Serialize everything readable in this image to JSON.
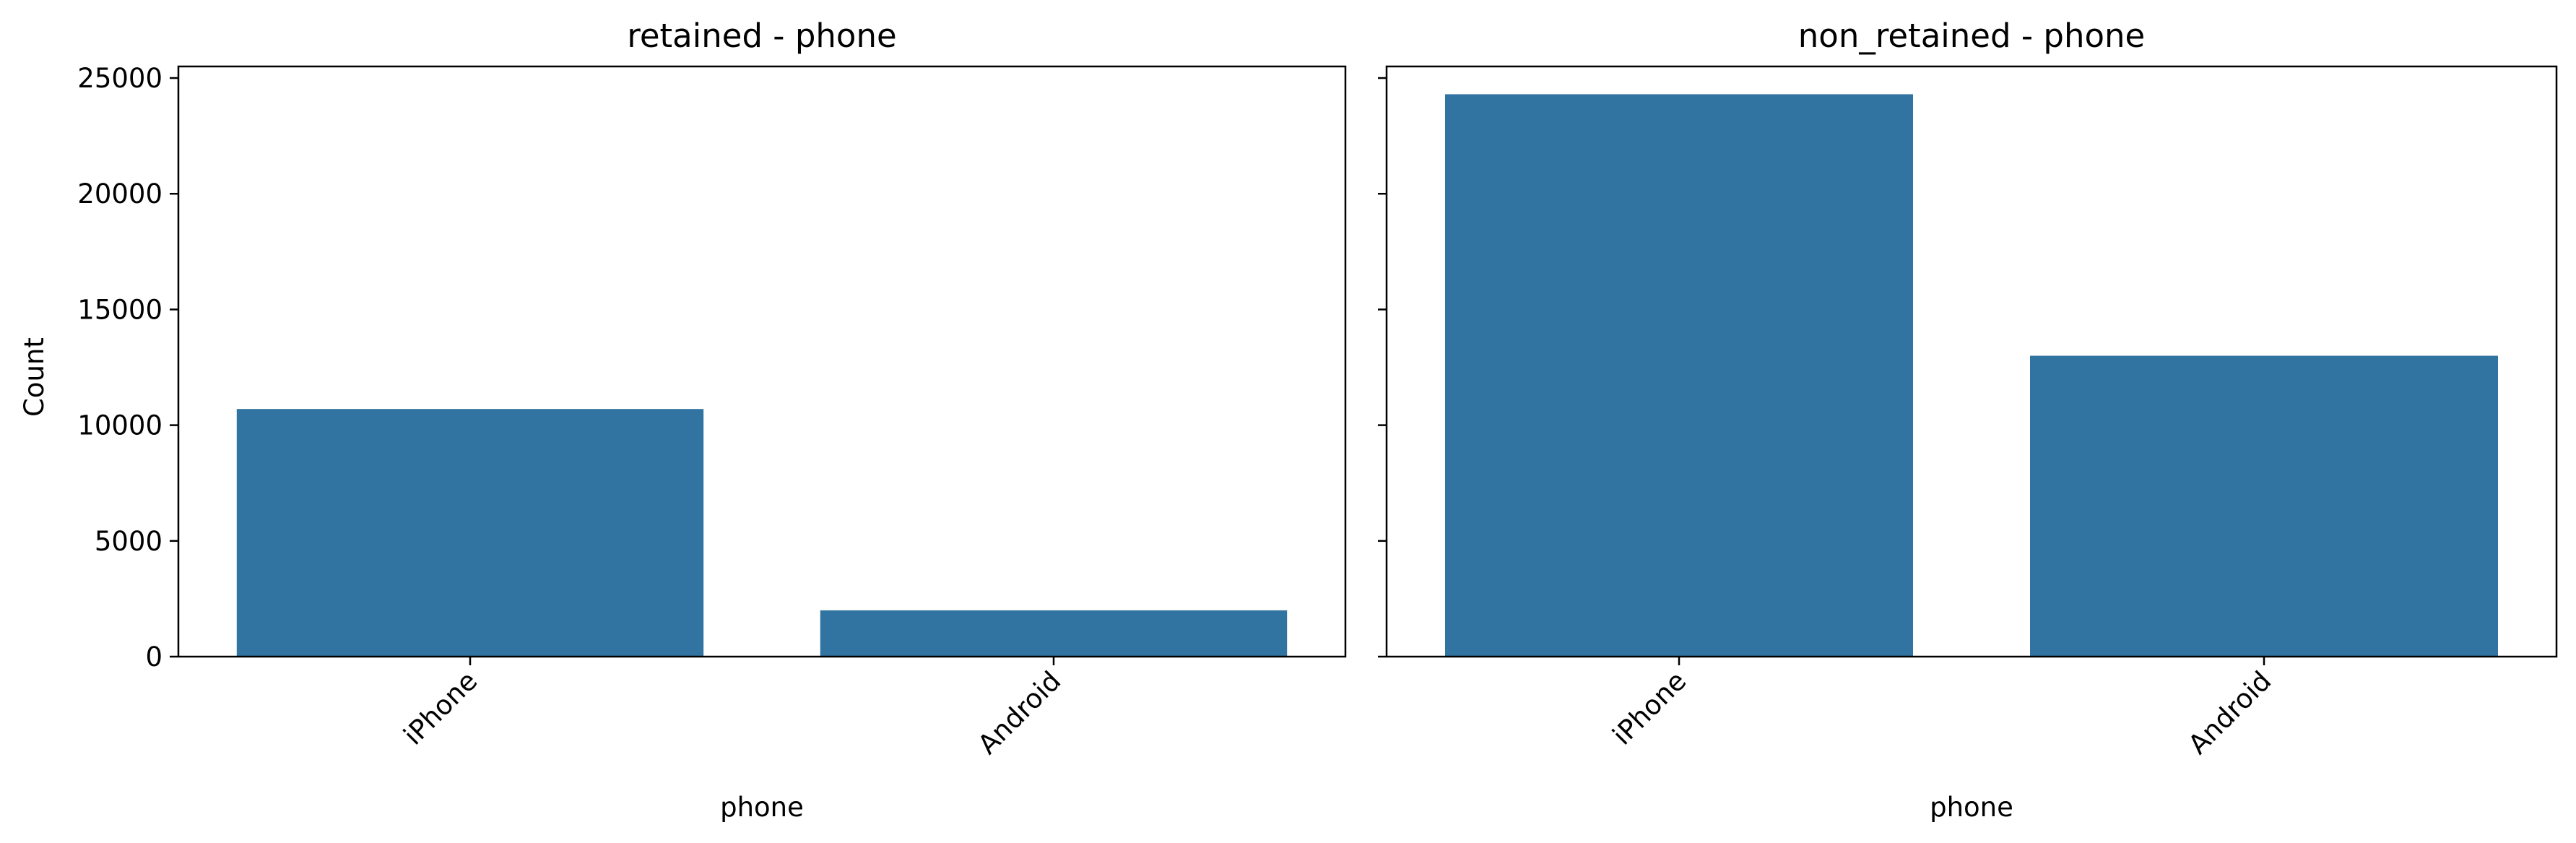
{
  "chart_data": [
    {
      "type": "bar",
      "title": "retained - phone",
      "xlabel": "phone",
      "ylabel": "Count",
      "categories": [
        "iPhone",
        "Android"
      ],
      "values": [
        10700,
        2000
      ],
      "ylim": [
        0,
        25500
      ],
      "yticks": [
        0,
        5000,
        10000,
        15000,
        20000,
        25000
      ],
      "ytick_labels": [
        "0",
        "5000",
        "10000",
        "15000",
        "20000",
        "25000"
      ],
      "color": "#3274a1",
      "grid": false
    },
    {
      "type": "bar",
      "title": "non_retained - phone",
      "xlabel": "phone",
      "ylabel": "",
      "categories": [
        "iPhone",
        "Android"
      ],
      "values": [
        24300,
        13000
      ],
      "ylim": [
        0,
        25500
      ],
      "yticks": [
        0,
        5000,
        10000,
        15000,
        20000,
        25000
      ],
      "ytick_labels": [],
      "color": "#3274a1",
      "grid": false
    }
  ]
}
